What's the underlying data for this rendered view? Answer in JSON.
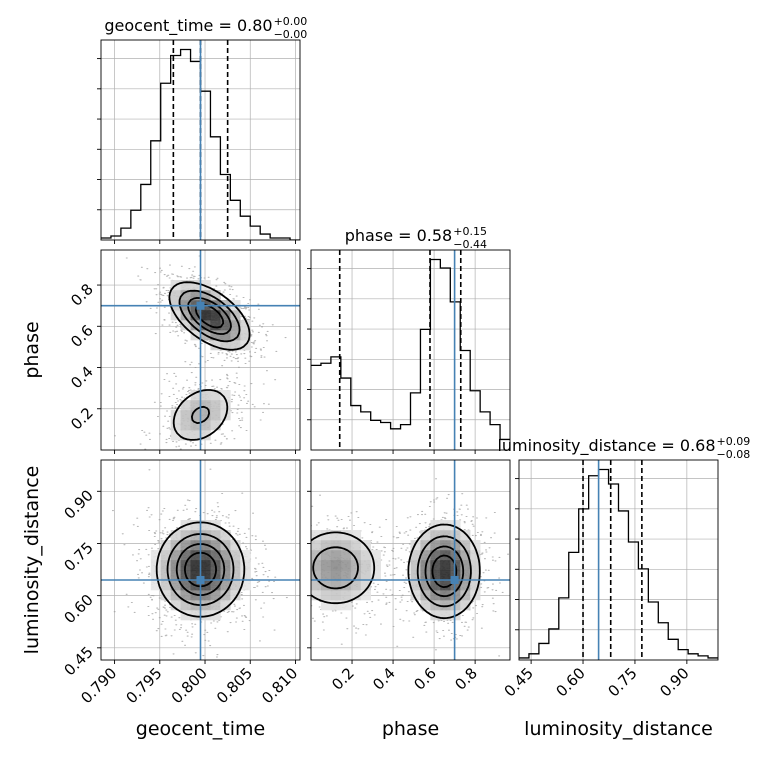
{
  "chart_data": {
    "type": "corner",
    "parameters": [
      "geocent_time",
      "phase",
      "luminosity_distance"
    ],
    "axis_labels": [
      "geocent_time",
      "phase",
      "luminosity_distance"
    ],
    "titles": [
      {
        "text": "geocent_time = 0.80",
        "sup": "+0.00",
        "sub": "−0.00"
      },
      {
        "text": "phase = 0.58",
        "sup": "+0.15",
        "sub": "−0.44"
      },
      {
        "text": "luminosity_distance = 0.68",
        "sup": "+0.09",
        "sub": "−0.08"
      }
    ],
    "ranges": [
      [
        0.7885,
        0.8105
      ],
      [
        0.0,
        0.97
      ],
      [
        0.415,
        0.99
      ]
    ],
    "ticks": [
      [
        0.79,
        0.795,
        0.8,
        0.805,
        0.81
      ],
      [
        0.2,
        0.4,
        0.6,
        0.8
      ],
      [
        0.45,
        0.6,
        0.75,
        0.9
      ]
    ],
    "tick_labels": [
      [
        "0.790",
        "0.795",
        "0.800",
        "0.805",
        "0.810"
      ],
      [
        "0.2",
        "0.4",
        "0.6",
        "0.8"
      ],
      [
        "0.45",
        "0.60",
        "0.75",
        "0.90"
      ]
    ],
    "truths": [
      0.7995,
      0.7,
      0.645
    ],
    "quantiles": [
      [
        0.7965,
        0.7995,
        0.8025
      ],
      [
        0.14,
        0.58,
        0.73
      ],
      [
        0.6,
        0.68,
        0.77
      ]
    ],
    "histograms": [
      {
        "edges_start": 0.7885,
        "bin_width": 0.0011,
        "counts": [
          1,
          2,
          6,
          15,
          28,
          50,
          79,
          93,
          96,
          90,
          75,
          52,
          33,
          20,
          12,
          7,
          3,
          1,
          1,
          0
        ]
      },
      {
        "edges_start": 0.0,
        "bin_width": 0.0485,
        "counts": [
          40,
          41,
          44,
          34,
          21,
          18,
          14,
          13,
          10,
          12,
          27,
          57,
          90,
          86,
          70,
          47,
          28,
          18,
          12,
          5
        ]
      },
      {
        "edges_start": 0.415,
        "bin_width": 0.02875,
        "counts": [
          1,
          3,
          8,
          15,
          30,
          52,
          73,
          89,
          92,
          85,
          72,
          57,
          44,
          28,
          18,
          10,
          5,
          3,
          2,
          1
        ]
      }
    ],
    "joint_modes": [
      {
        "pair": [
          1,
          0
        ],
        "components": [
          {
            "mx": 0.8005,
            "my": 0.65,
            "sx": 0.0023,
            "sy": 0.085,
            "w": 0.72,
            "rho": -0.55
          },
          {
            "mx": 0.7995,
            "my": 0.17,
            "sx": 0.0022,
            "sy": 0.09,
            "w": 0.28,
            "rho": 0.3
          }
        ]
      },
      {
        "pair": [
          2,
          0
        ],
        "components": [
          {
            "mx": 0.7995,
            "my": 0.675,
            "sx": 0.0025,
            "sy": 0.07,
            "w": 1.0,
            "rho": 0.0
          }
        ]
      },
      {
        "pair": [
          2,
          1
        ],
        "components": [
          {
            "mx": 0.65,
            "my": 0.67,
            "sx": 0.09,
            "sy": 0.07,
            "w": 0.65,
            "rho": 0.0
          },
          {
            "mx": 0.12,
            "my": 0.68,
            "sx": 0.12,
            "sy": 0.065,
            "w": 0.35,
            "rho": 0.0
          }
        ]
      }
    ],
    "colors": {
      "line": "#000000",
      "truth": "#4682b4",
      "grid": "#b0b0b0",
      "scatter": "#000000"
    }
  }
}
